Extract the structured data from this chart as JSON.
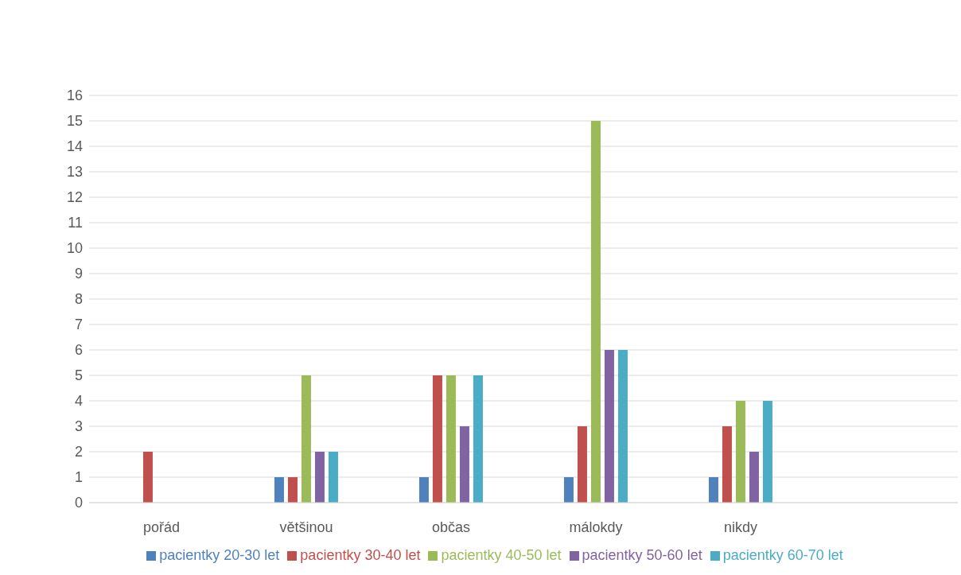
{
  "chart_data": {
    "type": "bar",
    "categories": [
      "pořád",
      "většinou",
      "občas",
      "málokdy",
      "nikdy",
      null
    ],
    "series": [
      {
        "name": "pacientky 20-30 let",
        "color": "#4f81bd",
        "values": [
          0,
          1,
          1,
          1,
          1,
          null
        ]
      },
      {
        "name": "pacientky 30-40 let",
        "color": "#c0504d",
        "values": [
          2,
          1,
          5,
          3,
          3,
          null
        ]
      },
      {
        "name": "pacientky 40-50 let",
        "color": "#9bbb59",
        "values": [
          0,
          5,
          5,
          15,
          4,
          null
        ]
      },
      {
        "name": "pacientky 50-60 let",
        "color": "#8064a2",
        "values": [
          0,
          2,
          3,
          6,
          2,
          null
        ]
      },
      {
        "name": "pacientky 60-70 let",
        "color": "#4bacc6",
        "values": [
          0,
          2,
          5,
          6,
          4,
          null
        ]
      }
    ],
    "ylim": [
      0,
      16
    ],
    "yticks": [
      0,
      1,
      2,
      3,
      4,
      5,
      6,
      7,
      8,
      9,
      10,
      11,
      12,
      13,
      14,
      15,
      16
    ],
    "grid": "y",
    "legend": "bottom"
  }
}
